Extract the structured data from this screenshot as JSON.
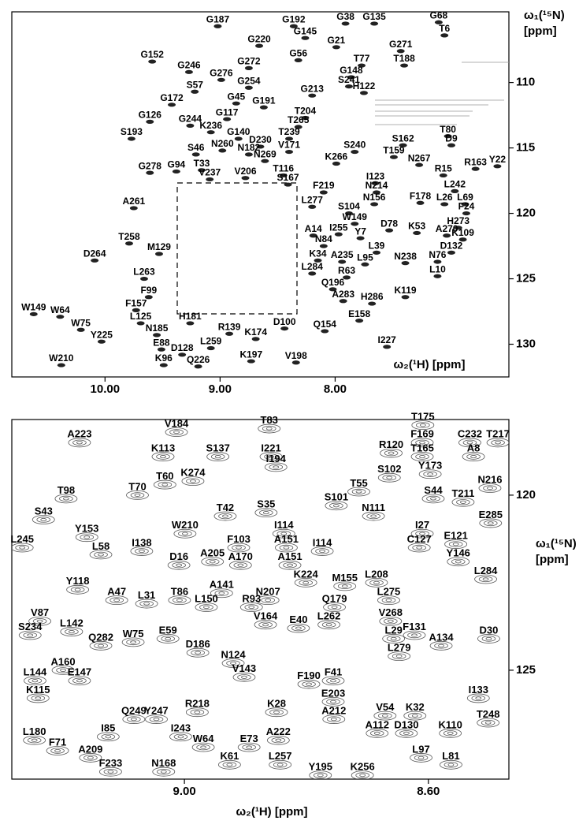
{
  "chart_data": [
    {
      "type": "scatter",
      "x_label": "ω₂(¹H) [ppm]",
      "y_label": [
        "ω₁(¹⁵N)",
        "[ppm]"
      ],
      "xlim": [
        10.81,
        6.49
      ],
      "ylim": [
        104.6,
        132.5
      ],
      "xticks": [
        {
          "value": 10,
          "label": "10.00"
        },
        {
          "value": 9,
          "label": "9.00"
        },
        {
          "value": 8,
          "label": "8.00"
        }
      ],
      "yticks": [
        110,
        115,
        120,
        125,
        130
      ],
      "color": "#222222",
      "labels": [
        "G187",
        "G192",
        "G38",
        "G135",
        "G68",
        "G145",
        "T6",
        "G220",
        "G21",
        "G271",
        "G152",
        "G56",
        "T77",
        "T188",
        "G272",
        "G246",
        "G148",
        "G276",
        "G254",
        "S241",
        "H122",
        "G213",
        "S57",
        "G45",
        "G172",
        "G191",
        "G117",
        "G126",
        "G244",
        "T204",
        "K236",
        "T265",
        "G140",
        "T239",
        "S193",
        "S162",
        "T80",
        "D230",
        "N260",
        "V171",
        "S46",
        "S240",
        "D9",
        "N182",
        "T159",
        "G278",
        "G94",
        "T33",
        "N269",
        "K266",
        "N267",
        "R163",
        "Y22",
        "V237",
        "V206",
        "T116",
        "R15",
        "I123",
        "S167",
        "F219",
        "L242",
        "N214",
        "N156",
        "F178",
        "L26",
        "L69",
        "A261",
        "L277",
        "S104",
        "F24",
        "H273",
        "W149",
        "D78",
        "K53",
        "A270",
        "K109",
        "I255",
        "A14",
        "Y7",
        "T258",
        "N84",
        "D132",
        "M129",
        "D264",
        "L39",
        "A235",
        "K34",
        "N238",
        "N76",
        "L95",
        "L284",
        "R63",
        "L263",
        "L10",
        "Q196",
        "H286",
        "F99",
        "A283",
        "K119",
        "F157",
        "E158",
        "W149",
        "W64",
        "W75",
        "L125",
        "H181",
        "Y225",
        "N185",
        "R139",
        "D100",
        "Q154",
        "K174",
        "E88",
        "D128",
        "L259",
        "I227",
        "W210",
        "Q226",
        "K197",
        "V198",
        "K96"
      ],
      "x": [
        9.02,
        8.36,
        7.91,
        7.66,
        7.1,
        8.26,
        7.05,
        8.66,
        7.99,
        7.43,
        9.59,
        8.32,
        7.77,
        7.4,
        8.75,
        9.27,
        7.86,
        8.99,
        8.75,
        7.88,
        7.75,
        8.2,
        9.22,
        8.86,
        9.42,
        8.62,
        8.94,
        9.61,
        9.26,
        8.26,
        9.08,
        8.32,
        8.84,
        8.4,
        9.77,
        7.41,
        7.02,
        8.65,
        8.98,
        8.4,
        9.21,
        7.83,
        6.99,
        8.75,
        7.49,
        9.61,
        9.38,
        9.16,
        8.61,
        7.99,
        7.27,
        6.78,
        6.59,
        9.09,
        8.78,
        8.45,
        7.06,
        7.65,
        8.41,
        8.1,
        6.96,
        7.64,
        7.66,
        7.26,
        7.05,
        6.87,
        9.75,
        8.2,
        7.88,
        6.86,
        6.93,
        7.83,
        7.53,
        7.29,
        7.03,
        6.89,
        7.97,
        8.19,
        7.78,
        9.79,
        8.1,
        6.99,
        9.53,
        10.09,
        7.64,
        7.94,
        8.15,
        7.39,
        7.11,
        7.74,
        8.2,
        7.9,
        9.66,
        7.11,
        8.02,
        7.68,
        9.62,
        7.93,
        7.39,
        9.73,
        7.79,
        10.62,
        10.39,
        10.21,
        9.69,
        9.26,
        10.03,
        9.55,
        8.92,
        8.44,
        8.09,
        8.69,
        9.51,
        9.33,
        9.08,
        7.55,
        10.38,
        9.19,
        8.73,
        8.34,
        9.49
      ],
      "y": [
        105.7,
        105.7,
        105.5,
        105.5,
        105.4,
        106.6,
        106.4,
        107.2,
        107.3,
        107.6,
        108.4,
        108.3,
        108.7,
        108.7,
        108.9,
        109.2,
        109.6,
        109.8,
        110.4,
        110.3,
        110.8,
        111.0,
        110.7,
        111.6,
        111.7,
        111.9,
        112.8,
        113.0,
        113.3,
        112.7,
        113.8,
        113.4,
        114.3,
        114.3,
        114.3,
        114.8,
        114.1,
        114.9,
        115.2,
        115.3,
        115.5,
        115.3,
        114.8,
        115.5,
        115.7,
        116.9,
        116.8,
        116.7,
        116.0,
        116.2,
        116.3,
        116.6,
        116.4,
        117.4,
        117.3,
        117.1,
        117.1,
        117.7,
        117.8,
        118.4,
        118.3,
        118.4,
        119.3,
        119.2,
        119.3,
        119.3,
        119.6,
        119.5,
        120.0,
        120.0,
        121.1,
        120.8,
        121.3,
        121.5,
        121.7,
        122.0,
        121.6,
        121.7,
        121.9,
        122.3,
        122.5,
        123.0,
        123.1,
        123.6,
        123.0,
        123.7,
        123.6,
        123.8,
        123.7,
        123.9,
        124.6,
        124.9,
        125.0,
        124.8,
        125.8,
        126.9,
        126.4,
        126.7,
        126.4,
        127.4,
        128.2,
        127.7,
        127.9,
        128.9,
        128.4,
        128.4,
        129.8,
        129.3,
        129.2,
        128.8,
        129.0,
        129.6,
        130.4,
        130.8,
        130.3,
        130.2,
        131.6,
        131.7,
        131.3,
        131.4,
        131.6
      ]
    },
    {
      "type": "contour",
      "x_label": "ω₂(¹H) [ppm]",
      "y_label": [
        "ω₁(¹⁵N)",
        "[ppm]"
      ],
      "xlim": [
        9.283,
        8.468
      ],
      "ylim": [
        117.84,
        128.11
      ],
      "xticks": [
        {
          "value": 9,
          "label": "9.00"
        },
        {
          "value": 8.6,
          "label": "8.60"
        }
      ],
      "yticks": [
        120,
        125
      ],
      "color": "#555555",
      "labels": [
        "V184",
        "T83",
        "T175",
        "C232",
        "T217",
        "F169",
        "A8",
        "A223",
        "S137",
        "I221",
        "R120",
        "I194",
        "K113",
        "T165",
        "K274",
        "S102",
        "Y173",
        "T60",
        "T70",
        "T55",
        "N216",
        "T98",
        "S101",
        "N111",
        "S44",
        "T211",
        "S35",
        "T42",
        "S43",
        "I114",
        "A151",
        "I114",
        "A151",
        "E285",
        "L245",
        "Y153",
        "W210",
        "I27",
        "E121",
        "C127",
        "Y146",
        "F103",
        "I138",
        "L58",
        "D16",
        "A205",
        "K224",
        "M155",
        "L208",
        "L275",
        "V268",
        "L284",
        "A170",
        "A141",
        "L150",
        "Y118",
        "A47",
        "L31",
        "T86",
        "N207",
        "Q179",
        "R93",
        "F131",
        "D30",
        "V87",
        "L142",
        "V164",
        "E40",
        "L262",
        "L29",
        "S234",
        "W75",
        "E59",
        "Q282",
        "D186",
        "L279",
        "A134",
        "N124",
        "A160",
        "V143",
        "E147",
        "F190",
        "F41",
        "L144",
        "I133",
        "K115",
        "E203",
        "R218",
        "Y247",
        "Q249",
        "K28",
        "V54",
        "K32",
        "T248",
        "A212",
        "A222",
        "I85",
        "A112",
        "D130",
        "K110",
        "I243",
        "L180",
        "W64",
        "E73",
        "F71",
        "A209",
        "L97",
        "K61",
        "L257",
        "Y195",
        "K256",
        "F233",
        "N168",
        "L81"
      ],
      "x": [
        9.013,
        8.861,
        8.609,
        8.532,
        8.486,
        8.61,
        8.526,
        9.172,
        8.945,
        8.858,
        8.661,
        8.85,
        9.035,
        8.61,
        8.986,
        8.664,
        8.597,
        9.032,
        9.077,
        8.714,
        8.499,
        9.194,
        8.751,
        8.69,
        8.592,
        8.543,
        8.866,
        8.933,
        9.231,
        8.837,
        8.833,
        8.774,
        8.827,
        8.498,
        9.266,
        9.16,
        8.999,
        8.61,
        8.555,
        8.615,
        8.551,
        8.911,
        9.07,
        9.137,
        9.009,
        8.954,
        8.801,
        8.737,
        8.685,
        8.665,
        8.662,
        8.506,
        8.908,
        8.939,
        8.964,
        9.175,
        9.111,
        9.062,
        9.008,
        8.863,
        8.754,
        8.89,
        8.623,
        8.501,
        9.237,
        9.185,
        8.867,
        8.813,
        8.763,
        8.657,
        9.253,
        9.084,
        9.027,
        9.137,
        8.978,
        8.648,
        8.579,
        8.92,
        9.199,
        8.902,
        9.172,
        8.796,
        8.756,
        9.245,
        8.518,
        9.24,
        8.756,
        8.979,
        9.046,
        9.083,
        8.849,
        8.671,
        8.622,
        8.502,
        8.755,
        8.846,
        9.125,
        8.684,
        8.636,
        8.564,
        9.006,
        9.246,
        8.969,
        8.894,
        9.208,
        9.154,
        8.612,
        8.926,
        8.843,
        8.777,
        8.708,
        9.121,
        9.034,
        8.563
      ],
      "y": [
        118.2,
        118.1,
        118.0,
        118.5,
        118.5,
        118.5,
        118.9,
        118.5,
        118.9,
        118.9,
        118.8,
        119.2,
        118.9,
        118.9,
        119.6,
        119.5,
        119.4,
        119.7,
        120.0,
        119.9,
        119.8,
        120.1,
        120.3,
        120.6,
        120.1,
        120.2,
        120.5,
        120.6,
        120.7,
        121.1,
        121.5,
        121.6,
        122.0,
        120.8,
        121.5,
        121.2,
        121.1,
        121.1,
        121.4,
        121.5,
        121.9,
        121.5,
        121.6,
        121.7,
        122.0,
        121.9,
        122.5,
        122.6,
        122.5,
        123.0,
        123.6,
        122.4,
        122.0,
        122.8,
        123.2,
        122.7,
        123.0,
        123.1,
        123.0,
        123.0,
        123.2,
        123.2,
        124.0,
        124.1,
        123.6,
        123.9,
        123.7,
        123.8,
        123.7,
        124.1,
        124.0,
        124.2,
        124.1,
        124.3,
        124.5,
        124.6,
        124.3,
        124.8,
        125.0,
        125.2,
        125.3,
        125.4,
        125.3,
        125.3,
        125.8,
        125.8,
        125.9,
        126.2,
        126.4,
        126.4,
        126.2,
        126.3,
        126.3,
        126.5,
        126.4,
        127.0,
        126.9,
        126.8,
        126.8,
        126.8,
        126.9,
        127.0,
        127.2,
        127.2,
        127.3,
        127.5,
        127.5,
        127.7,
        127.7,
        128.0,
        128.0,
        127.9,
        127.9,
        127.7
      ]
    }
  ]
}
